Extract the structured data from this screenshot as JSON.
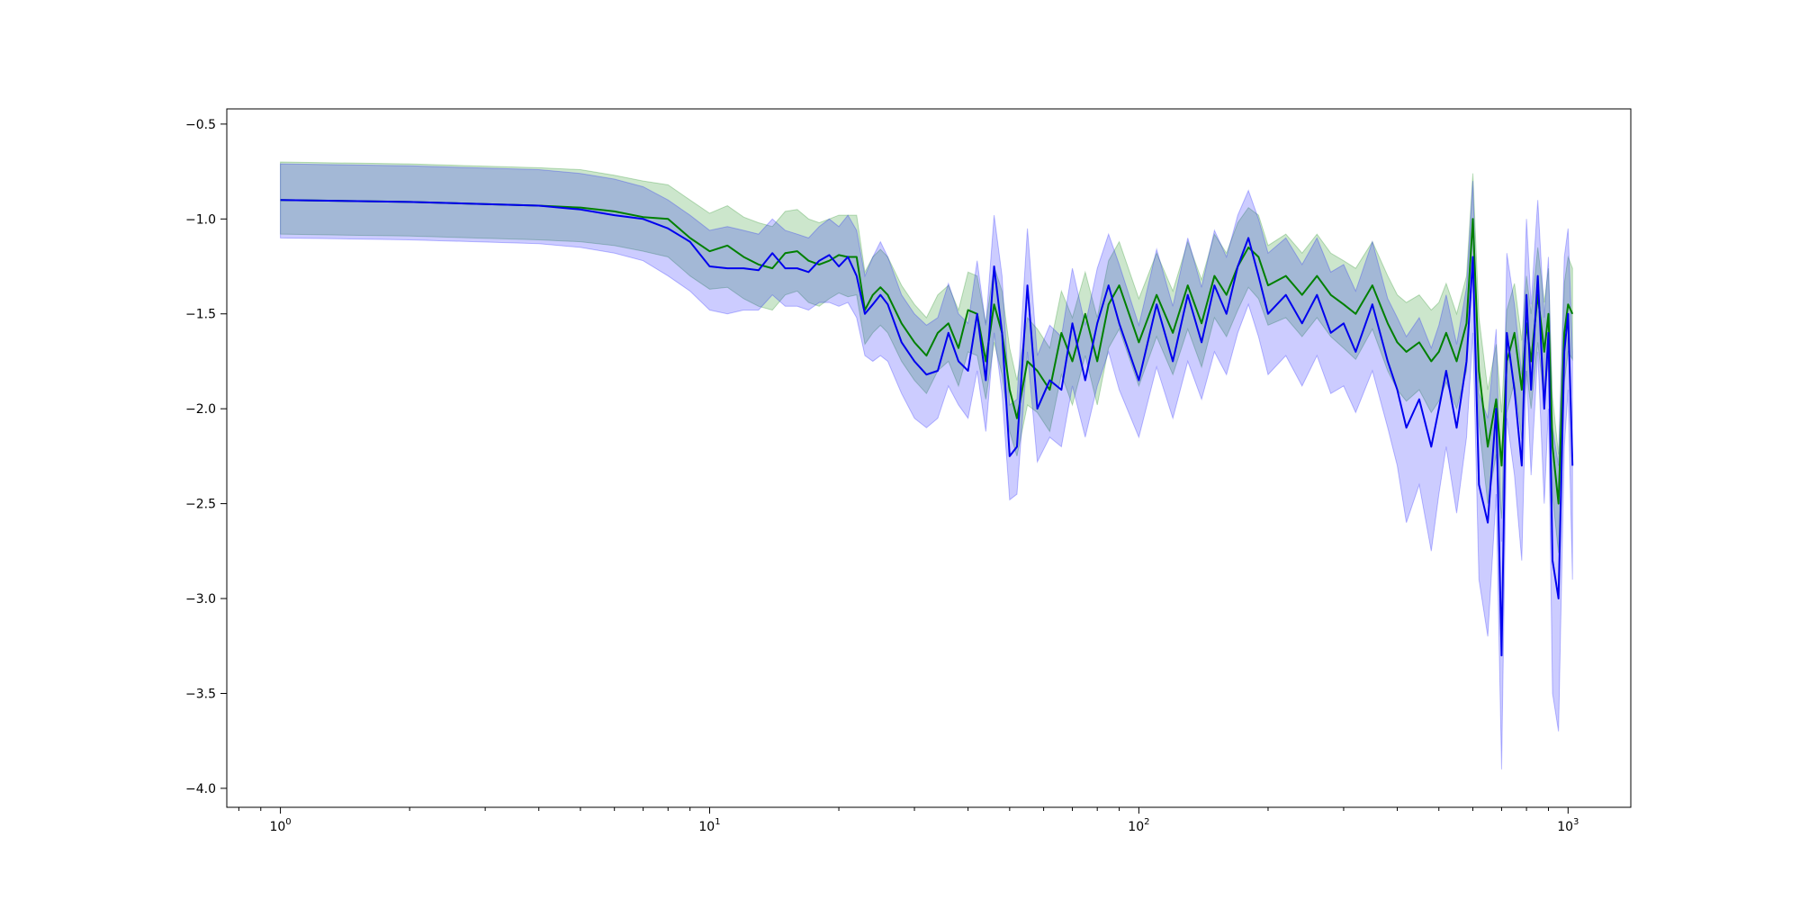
{
  "chart_data": {
    "type": "line",
    "title": "",
    "xlabel": "",
    "ylabel": "",
    "xscale": "log",
    "xlim": [
      0.75,
      1400
    ],
    "ylim": [
      -4.1,
      -0.42
    ],
    "grid": false,
    "legend": "none",
    "x_major_ticks": [
      {
        "value": 1,
        "base": "10",
        "exp": "0"
      },
      {
        "value": 10,
        "base": "10",
        "exp": "1"
      },
      {
        "value": 100,
        "base": "10",
        "exp": "2"
      },
      {
        "value": 1000,
        "base": "10",
        "exp": "3"
      }
    ],
    "y_ticks": [
      {
        "value": -0.5,
        "label": "−0.5"
      },
      {
        "value": -1.0,
        "label": "−1.0"
      },
      {
        "value": -1.5,
        "label": "−1.5"
      },
      {
        "value": -2.0,
        "label": "−2.0"
      },
      {
        "value": -2.5,
        "label": "−2.5"
      },
      {
        "value": -3.0,
        "label": "−3.0"
      },
      {
        "value": -3.5,
        "label": "−3.5"
      },
      {
        "value": -4.0,
        "label": "−4.0"
      }
    ],
    "series": [
      {
        "color": "#008000",
        "band_color": "#008000",
        "band_opacity": 0.2,
        "x": [
          1,
          2,
          4,
          5,
          6,
          7,
          8,
          9,
          10,
          11,
          12,
          13,
          14,
          15,
          16,
          17,
          18,
          19,
          20,
          21,
          22,
          23,
          24,
          25,
          26,
          28,
          30,
          32,
          34,
          36,
          38,
          40,
          42,
          44,
          46,
          48,
          50,
          52,
          55,
          58,
          62,
          66,
          70,
          75,
          80,
          85,
          90,
          100,
          110,
          120,
          130,
          140,
          150,
          160,
          170,
          180,
          190,
          200,
          220,
          240,
          260,
          280,
          300,
          320,
          350,
          380,
          400,
          420,
          450,
          480,
          500,
          520,
          550,
          580,
          600,
          620,
          650,
          680,
          700,
          720,
          750,
          780,
          800,
          820,
          850,
          880,
          900,
          920,
          950,
          980,
          1000,
          1024
        ],
        "y": [
          -0.9,
          -0.91,
          -0.93,
          -0.94,
          -0.96,
          -0.99,
          -1.0,
          -1.1,
          -1.17,
          -1.14,
          -1.2,
          -1.24,
          -1.26,
          -1.18,
          -1.17,
          -1.22,
          -1.24,
          -1.22,
          -1.19,
          -1.2,
          -1.2,
          -1.48,
          -1.4,
          -1.36,
          -1.4,
          -1.55,
          -1.65,
          -1.72,
          -1.6,
          -1.55,
          -1.68,
          -1.48,
          -1.5,
          -1.75,
          -1.45,
          -1.6,
          -1.9,
          -2.05,
          -1.75,
          -1.8,
          -1.9,
          -1.6,
          -1.75,
          -1.5,
          -1.75,
          -1.45,
          -1.35,
          -1.65,
          -1.4,
          -1.6,
          -1.35,
          -1.55,
          -1.3,
          -1.4,
          -1.25,
          -1.15,
          -1.2,
          -1.35,
          -1.3,
          -1.4,
          -1.3,
          -1.4,
          -1.45,
          -1.5,
          -1.35,
          -1.55,
          -1.65,
          -1.7,
          -1.65,
          -1.75,
          -1.7,
          -1.6,
          -1.75,
          -1.55,
          -1.0,
          -1.8,
          -2.2,
          -1.95,
          -2.3,
          -1.75,
          -1.6,
          -1.9,
          -1.55,
          -1.75,
          -1.4,
          -1.7,
          -1.5,
          -2.2,
          -2.5,
          -1.6,
          -1.45,
          -1.5
        ],
        "y_lo": [
          -1.08,
          -1.09,
          -1.11,
          -1.12,
          -1.14,
          -1.17,
          -1.2,
          -1.3,
          -1.37,
          -1.36,
          -1.42,
          -1.46,
          -1.48,
          -1.4,
          -1.38,
          -1.44,
          -1.46,
          -1.42,
          -1.39,
          -1.41,
          -1.4,
          -1.66,
          -1.6,
          -1.56,
          -1.6,
          -1.75,
          -1.85,
          -1.92,
          -1.8,
          -1.75,
          -1.88,
          -1.7,
          -1.72,
          -1.95,
          -1.65,
          -1.82,
          -2.12,
          -2.25,
          -1.98,
          -2.02,
          -2.12,
          -1.82,
          -1.98,
          -1.72,
          -1.98,
          -1.68,
          -1.58,
          -1.88,
          -1.62,
          -1.82,
          -1.58,
          -1.78,
          -1.52,
          -1.62,
          -1.48,
          -1.36,
          -1.42,
          -1.56,
          -1.52,
          -1.62,
          -1.52,
          -1.62,
          -1.68,
          -1.74,
          -1.58,
          -1.8,
          -1.9,
          -1.96,
          -1.9,
          -2.02,
          -1.96,
          -1.86,
          -2.0,
          -1.8,
          -1.24,
          -2.08,
          -2.5,
          -2.24,
          -2.58,
          -2.02,
          -1.86,
          -2.16,
          -1.8,
          -2.0,
          -1.65,
          -1.96,
          -1.74,
          -2.46,
          -2.76,
          -1.86,
          -1.7,
          -1.74
        ],
        "y_hi": [
          -0.7,
          -0.71,
          -0.73,
          -0.74,
          -0.77,
          -0.8,
          -0.82,
          -0.9,
          -0.97,
          -0.93,
          -0.99,
          -1.02,
          -1.04,
          -0.96,
          -0.95,
          -1.0,
          -1.02,
          -1.0,
          -0.98,
          -0.98,
          -0.98,
          -1.28,
          -1.2,
          -1.16,
          -1.2,
          -1.35,
          -1.45,
          -1.52,
          -1.4,
          -1.35,
          -1.48,
          -1.28,
          -1.3,
          -1.55,
          -1.25,
          -1.38,
          -1.68,
          -1.85,
          -1.52,
          -1.58,
          -1.68,
          -1.38,
          -1.52,
          -1.28,
          -1.52,
          -1.22,
          -1.12,
          -1.42,
          -1.18,
          -1.38,
          -1.12,
          -1.32,
          -1.08,
          -1.18,
          -1.02,
          -0.94,
          -0.98,
          -1.14,
          -1.08,
          -1.18,
          -1.08,
          -1.18,
          -1.22,
          -1.26,
          -1.12,
          -1.3,
          -1.4,
          -1.44,
          -1.4,
          -1.48,
          -1.44,
          -1.34,
          -1.5,
          -1.3,
          -0.76,
          -1.52,
          -1.9,
          -1.66,
          -2.02,
          -1.48,
          -1.34,
          -1.64,
          -1.3,
          -1.5,
          -1.15,
          -1.44,
          -1.26,
          -1.94,
          -2.24,
          -1.34,
          -1.2,
          -1.26
        ]
      },
      {
        "color": "#0000ee",
        "band_color": "#0000ff",
        "band_opacity": 0.2,
        "x": [
          1,
          2,
          4,
          5,
          6,
          7,
          8,
          9,
          10,
          11,
          12,
          13,
          14,
          15,
          16,
          17,
          18,
          19,
          20,
          21,
          22,
          23,
          24,
          25,
          26,
          28,
          30,
          32,
          34,
          36,
          38,
          40,
          42,
          44,
          46,
          48,
          50,
          52,
          55,
          58,
          62,
          66,
          70,
          75,
          80,
          85,
          90,
          100,
          110,
          120,
          130,
          140,
          150,
          160,
          170,
          180,
          190,
          200,
          220,
          240,
          260,
          280,
          300,
          320,
          350,
          380,
          400,
          420,
          450,
          480,
          500,
          520,
          550,
          580,
          600,
          620,
          650,
          680,
          700,
          720,
          750,
          780,
          800,
          820,
          850,
          880,
          900,
          920,
          950,
          980,
          1000,
          1024
        ],
        "y": [
          -0.9,
          -0.91,
          -0.93,
          -0.95,
          -0.98,
          -1.0,
          -1.05,
          -1.12,
          -1.25,
          -1.26,
          -1.26,
          -1.27,
          -1.18,
          -1.26,
          -1.26,
          -1.28,
          -1.22,
          -1.19,
          -1.25,
          -1.2,
          -1.3,
          -1.5,
          -1.45,
          -1.4,
          -1.45,
          -1.65,
          -1.75,
          -1.82,
          -1.8,
          -1.6,
          -1.75,
          -1.8,
          -1.5,
          -1.85,
          -1.25,
          -1.6,
          -2.25,
          -2.2,
          -1.35,
          -2.0,
          -1.85,
          -1.9,
          -1.55,
          -1.85,
          -1.55,
          -1.35,
          -1.55,
          -1.85,
          -1.45,
          -1.75,
          -1.4,
          -1.65,
          -1.35,
          -1.5,
          -1.25,
          -1.1,
          -1.3,
          -1.5,
          -1.4,
          -1.55,
          -1.4,
          -1.6,
          -1.55,
          -1.7,
          -1.45,
          -1.75,
          -1.9,
          -2.1,
          -1.95,
          -2.2,
          -2.0,
          -1.8,
          -2.1,
          -1.75,
          -1.2,
          -2.4,
          -2.6,
          -2.0,
          -3.3,
          -1.6,
          -1.9,
          -2.3,
          -1.4,
          -1.9,
          -1.3,
          -2.0,
          -1.6,
          -2.8,
          -3.0,
          -1.7,
          -1.5,
          -2.3
        ],
        "y_lo": [
          -1.1,
          -1.11,
          -1.13,
          -1.15,
          -1.18,
          -1.22,
          -1.3,
          -1.38,
          -1.48,
          -1.5,
          -1.48,
          -1.48,
          -1.4,
          -1.46,
          -1.46,
          -1.48,
          -1.44,
          -1.44,
          -1.46,
          -1.44,
          -1.52,
          -1.72,
          -1.75,
          -1.72,
          -1.75,
          -1.92,
          -2.05,
          -2.1,
          -2.05,
          -1.88,
          -1.98,
          -2.05,
          -1.8,
          -2.12,
          -1.6,
          -1.92,
          -2.48,
          -2.45,
          -1.7,
          -2.28,
          -2.15,
          -2.2,
          -1.88,
          -2.15,
          -1.88,
          -1.7,
          -1.9,
          -2.15,
          -1.78,
          -2.05,
          -1.75,
          -1.95,
          -1.7,
          -1.82,
          -1.6,
          -1.45,
          -1.62,
          -1.82,
          -1.72,
          -1.88,
          -1.72,
          -1.92,
          -1.88,
          -2.02,
          -1.8,
          -2.1,
          -2.3,
          -2.6,
          -2.4,
          -2.75,
          -2.45,
          -2.2,
          -2.55,
          -2.15,
          -1.6,
          -2.9,
          -3.2,
          -2.45,
          -3.9,
          -2.05,
          -2.35,
          -2.8,
          -1.8,
          -2.35,
          -1.7,
          -2.5,
          -2.0,
          -3.5,
          -3.7,
          -2.2,
          -1.9,
          -2.9
        ],
        "y_hi": [
          -0.71,
          -0.72,
          -0.74,
          -0.76,
          -0.79,
          -0.83,
          -0.9,
          -0.98,
          -1.06,
          -1.04,
          -1.06,
          -1.08,
          -1.0,
          -1.06,
          -1.08,
          -1.1,
          -1.04,
          -1.0,
          -1.04,
          -0.98,
          -1.06,
          -1.3,
          -1.2,
          -1.12,
          -1.2,
          -1.4,
          -1.5,
          -1.56,
          -1.52,
          -1.34,
          -1.5,
          -1.55,
          -1.22,
          -1.56,
          -0.98,
          -1.3,
          -1.98,
          -1.95,
          -1.05,
          -1.72,
          -1.56,
          -1.62,
          -1.26,
          -1.56,
          -1.26,
          -1.08,
          -1.24,
          -1.56,
          -1.16,
          -1.46,
          -1.1,
          -1.36,
          -1.06,
          -1.2,
          -0.98,
          -0.85,
          -1.0,
          -1.18,
          -1.1,
          -1.24,
          -1.1,
          -1.28,
          -1.24,
          -1.38,
          -1.12,
          -1.42,
          -1.52,
          -1.62,
          -1.52,
          -1.68,
          -1.56,
          -1.4,
          -1.66,
          -1.36,
          -0.8,
          -1.92,
          -2.05,
          -1.58,
          -2.7,
          -1.18,
          -1.45,
          -1.82,
          -1.0,
          -1.45,
          -0.9,
          -1.52,
          -1.2,
          -2.1,
          -2.3,
          -1.2,
          -1.05,
          -1.7
        ]
      }
    ]
  }
}
